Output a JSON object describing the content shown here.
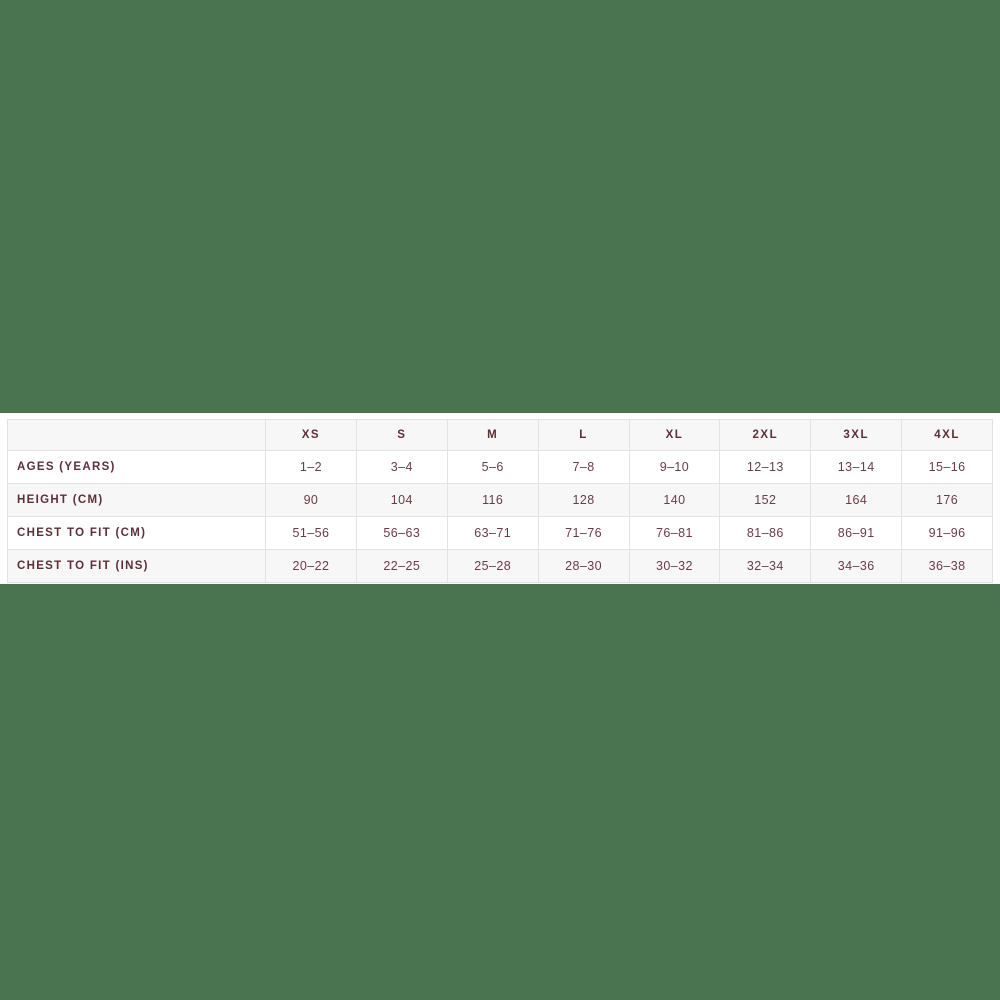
{
  "page": {
    "background_color": "#4a7350",
    "band_background_color": "#ffffff",
    "text_color": "#5d2f38",
    "value_text_color": "#6a3c46",
    "stripe_color": "#f7f7f7",
    "border_color": "#e3e3e3"
  },
  "size_chart": {
    "corner_label": "",
    "columns": [
      "XS",
      "S",
      "M",
      "L",
      "XL",
      "2XL",
      "3XL",
      "4XL"
    ],
    "rows": [
      {
        "label": "AGES (YEARS)",
        "values": [
          "1–2",
          "3–4",
          "5–6",
          "7–8",
          "9–10",
          "12–13",
          "13–14",
          "15–16"
        ]
      },
      {
        "label": "HEIGHT (CM)",
        "values": [
          "90",
          "104",
          "116",
          "128",
          "140",
          "152",
          "164",
          "176"
        ]
      },
      {
        "label": "CHEST TO FIT (CM)",
        "values": [
          "51–56",
          "56–63",
          "63–71",
          "71–76",
          "76–81",
          "81–86",
          "86–91",
          "91–96"
        ]
      },
      {
        "label": "CHEST TO FIT (INS)",
        "values": [
          "20–22",
          "22–25",
          "25–28",
          "28–30",
          "30–32",
          "32–34",
          "34–36",
          "36–38"
        ]
      }
    ]
  },
  "chart_data": {
    "type": "table",
    "title": "",
    "columns": [
      "",
      "XS",
      "S",
      "M",
      "L",
      "XL",
      "2XL",
      "3XL",
      "4XL"
    ],
    "rows": [
      [
        "AGES (YEARS)",
        "1–2",
        "3–4",
        "5–6",
        "7–8",
        "9–10",
        "12–13",
        "13–14",
        "15–16"
      ],
      [
        "HEIGHT (CM)",
        "90",
        "104",
        "116",
        "128",
        "140",
        "152",
        "164",
        "176"
      ],
      [
        "CHEST TO FIT (CM)",
        "51–56",
        "56–63",
        "63–71",
        "71–76",
        "76–81",
        "81–86",
        "86–91",
        "91–96"
      ],
      [
        "CHEST TO FIT (INS)",
        "20–22",
        "22–25",
        "25–28",
        "28–30",
        "30–32",
        "32–34",
        "34–36",
        "36–38"
      ]
    ]
  }
}
